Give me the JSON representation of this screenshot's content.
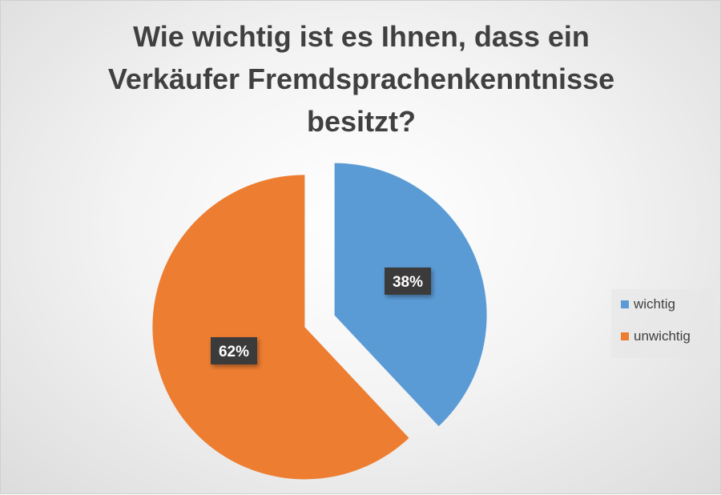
{
  "chart_data": {
    "type": "pie",
    "title": "Wie wichtig ist es Ihnen, dass ein Verkäufer Fremdsprachenkenntnisse besitzt?",
    "categories": [
      "wichtig",
      "unwichtig"
    ],
    "values": [
      38,
      62
    ],
    "data_labels": [
      "38%",
      "62%"
    ],
    "colors": [
      "#5b9bd5",
      "#ed7d31"
    ],
    "legend_position": "right",
    "exploded": true
  }
}
